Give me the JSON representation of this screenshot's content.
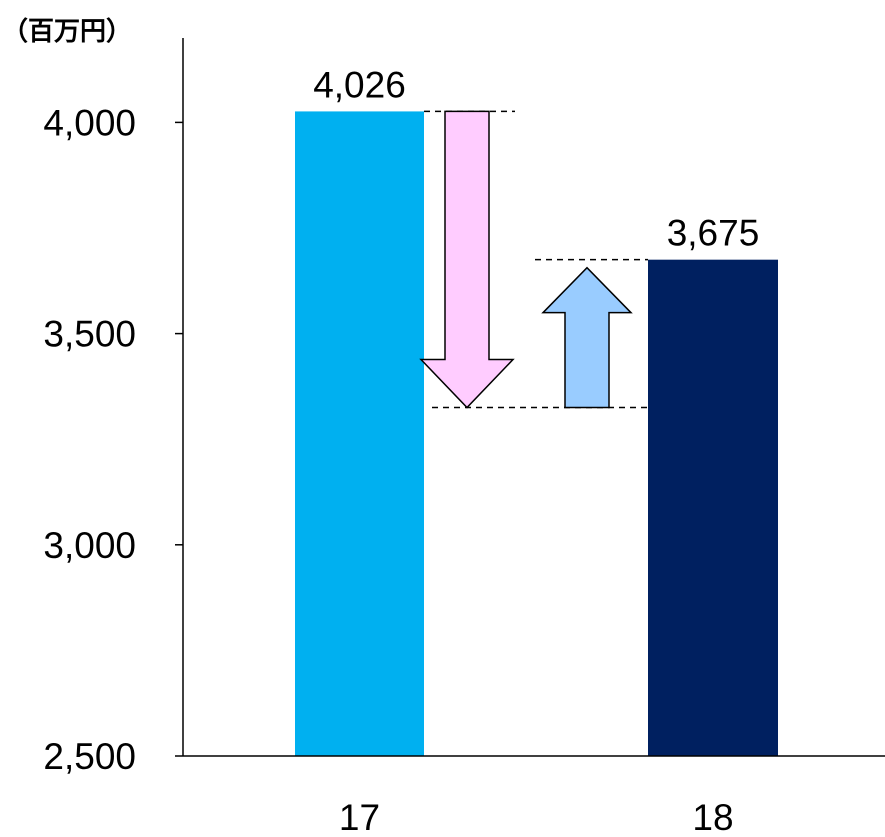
{
  "chart_data": {
    "type": "bar",
    "unit_label": "（百万円）",
    "categories": [
      "17",
      "18"
    ],
    "values": [
      4026,
      3675
    ],
    "value_labels": [
      "4,026",
      "3,675"
    ],
    "ylim": [
      2500,
      4300
    ],
    "yticks": [
      2500,
      3000,
      3500,
      4000
    ],
    "ytick_labels": [
      "2,500",
      "3,000",
      "3,500",
      "4,000"
    ],
    "grid": false,
    "legend": "none",
    "bar_colors": [
      "#00B0F0",
      "#002060"
    ],
    "bridge": {
      "bottom_value": 3325,
      "down_arrow_color": "#FFCCFF",
      "up_arrow_color": "#99CCFF"
    }
  }
}
